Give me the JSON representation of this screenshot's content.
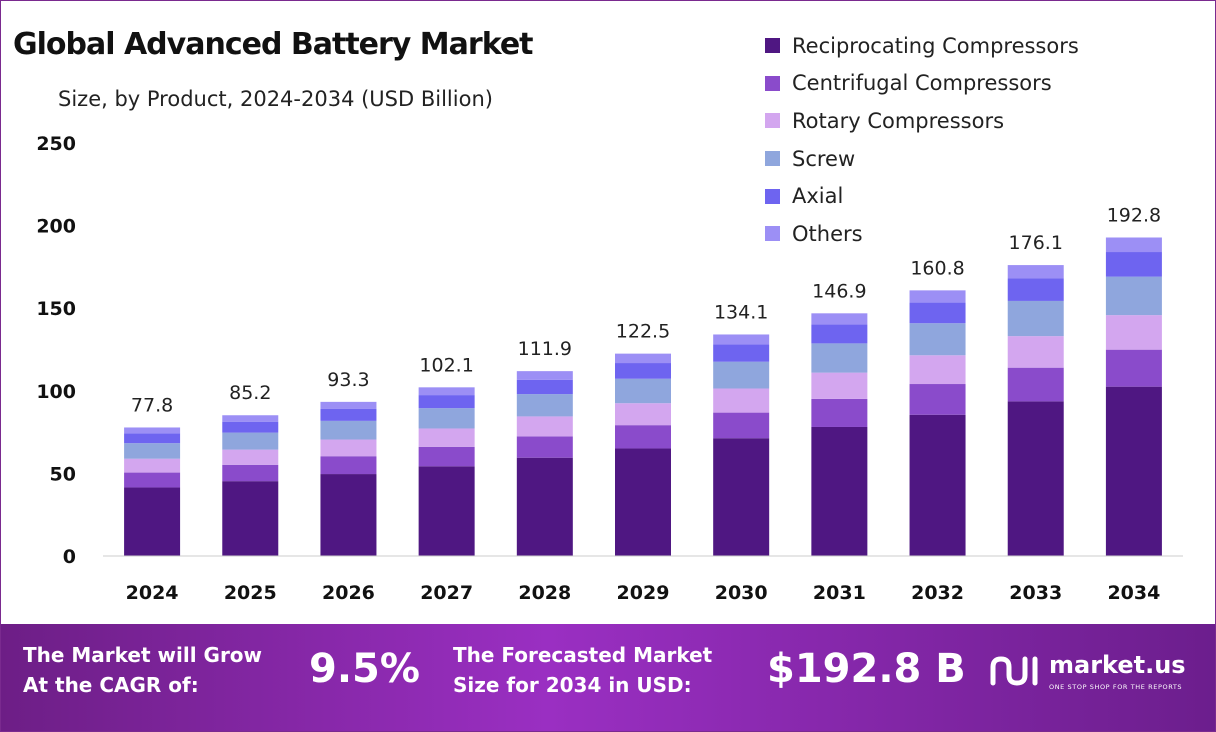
{
  "chart_data": {
    "type": "bar",
    "stacked": true,
    "title": "Global Advanced Battery Market",
    "subtitle": "Size, by Product, 2024-2034 (USD Billion)",
    "categories": [
      "2024",
      "2025",
      "2026",
      "2027",
      "2028",
      "2029",
      "2030",
      "2031",
      "2032",
      "2033",
      "2034"
    ],
    "totals": [
      77.8,
      85.2,
      93.3,
      102.1,
      111.9,
      122.5,
      134.1,
      146.9,
      160.8,
      176.1,
      192.8
    ],
    "series": [
      {
        "name": "Reciprocating Compressors",
        "color": "#4f1782",
        "values": [
          41.5,
          45.3,
          49.6,
          54.3,
          59.5,
          65.1,
          71.3,
          78.1,
          85.5,
          93.6,
          102.5
        ]
      },
      {
        "name": "Centrifugal Compressors",
        "color": "#8a4bcb",
        "values": [
          9.0,
          9.9,
          10.8,
          11.8,
          12.9,
          14.1,
          15.5,
          17.0,
          18.6,
          20.4,
          22.4
        ]
      },
      {
        "name": "Rotary Compressors",
        "color": "#d3a6ef",
        "values": [
          8.4,
          9.2,
          10.1,
          11.1,
          12.1,
          13.3,
          14.6,
          15.9,
          17.4,
          19.1,
          20.9
        ]
      },
      {
        "name": "Screw",
        "color": "#8fa6dd",
        "values": [
          9.4,
          10.3,
          11.3,
          12.3,
          13.5,
          14.8,
          16.2,
          17.7,
          19.4,
          21.3,
          23.3
        ]
      },
      {
        "name": "Axial",
        "color": "#6e64f0",
        "values": [
          6.0,
          6.6,
          7.2,
          7.9,
          8.7,
          9.5,
          10.4,
          11.4,
          12.5,
          13.6,
          14.9
        ]
      },
      {
        "name": "Others",
        "color": "#9c8ff5",
        "values": [
          3.5,
          3.9,
          4.3,
          4.7,
          5.2,
          5.7,
          6.1,
          6.8,
          7.4,
          8.1,
          8.8
        ]
      }
    ],
    "yticks": [
      "0",
      "50",
      "100",
      "150",
      "200",
      "250"
    ],
    "ylim": [
      0,
      250
    ],
    "xlabel": "",
    "ylabel": "",
    "grid": false,
    "legend_position": "top-right"
  },
  "banner": {
    "cagr_label_line1": "The Market will Grow",
    "cagr_label_line2": "At the CAGR of:",
    "cagr_value": "9.5%",
    "forecast_label_line1": "The Forecasted Market",
    "forecast_label_line2": "Size for 2034 in USD:",
    "forecast_value": "$192.8 B",
    "brand_name": "market.us",
    "brand_tagline": "ONE STOP SHOP FOR THE REPORTS",
    "brand_icon": "market-us-logo-icon"
  },
  "colors": {
    "banner_start": "#6d1e86",
    "banner_mid": "#9a2fc2",
    "frame_border": "#7a2a8f"
  }
}
